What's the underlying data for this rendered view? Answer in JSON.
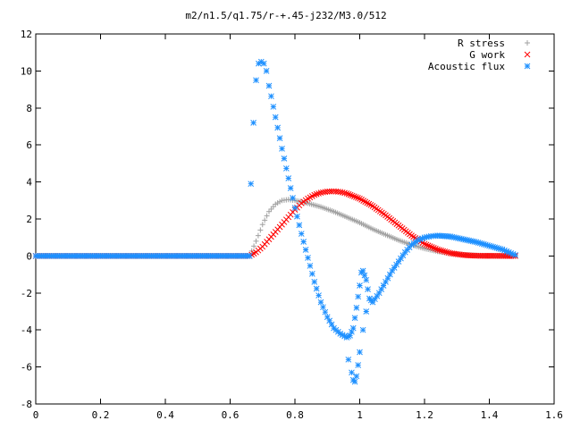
{
  "chart_data": {
    "type": "scatter",
    "title": "m2/n1.5/q1.75/r-+.45-j232/M3.0/512",
    "xlabel": "",
    "ylabel": "",
    "xlim": [
      0,
      1.6
    ],
    "ylim": [
      -8,
      12
    ],
    "x_ticks": [
      "0",
      "0.2",
      "0.4",
      "0.6",
      "0.8",
      "1",
      "1.2",
      "1.4",
      "1.6"
    ],
    "y_ticks": [
      "12",
      "10",
      "8",
      "6",
      "4",
      "2",
      "0",
      "-2",
      "-4",
      "-6",
      "-8"
    ],
    "grid": false,
    "legend_position": "top-right",
    "series": [
      {
        "name": "R stress",
        "color": "#a0a0a0",
        "marker": "plus",
        "points": [
          [
            0.0,
            0
          ],
          [
            0.66,
            0
          ],
          [
            0.68,
            0.8
          ],
          [
            0.7,
            1.7
          ],
          [
            0.72,
            2.4
          ],
          [
            0.74,
            2.8
          ],
          [
            0.76,
            3.0
          ],
          [
            0.78,
            3.05
          ],
          [
            0.8,
            3.0
          ],
          [
            0.84,
            2.85
          ],
          [
            0.88,
            2.65
          ],
          [
            0.92,
            2.4
          ],
          [
            0.96,
            2.1
          ],
          [
            1.0,
            1.8
          ],
          [
            1.04,
            1.45
          ],
          [
            1.08,
            1.15
          ],
          [
            1.12,
            0.85
          ],
          [
            1.16,
            0.6
          ],
          [
            1.2,
            0.4
          ],
          [
            1.24,
            0.25
          ],
          [
            1.28,
            0.14
          ],
          [
            1.32,
            0.07
          ],
          [
            1.36,
            0.03
          ],
          [
            1.4,
            0.01
          ],
          [
            1.48,
            0.0
          ]
        ]
      },
      {
        "name": "G work",
        "color": "#ff0000",
        "marker": "cross",
        "points": [
          [
            0.0,
            0
          ],
          [
            0.66,
            0
          ],
          [
            0.68,
            0.2
          ],
          [
            0.7,
            0.5
          ],
          [
            0.72,
            0.9
          ],
          [
            0.74,
            1.3
          ],
          [
            0.76,
            1.7
          ],
          [
            0.78,
            2.1
          ],
          [
            0.8,
            2.5
          ],
          [
            0.82,
            2.85
          ],
          [
            0.84,
            3.1
          ],
          [
            0.86,
            3.3
          ],
          [
            0.88,
            3.42
          ],
          [
            0.9,
            3.48
          ],
          [
            0.92,
            3.5
          ],
          [
            0.94,
            3.46
          ],
          [
            0.96,
            3.38
          ],
          [
            1.0,
            3.1
          ],
          [
            1.04,
            2.7
          ],
          [
            1.08,
            2.2
          ],
          [
            1.12,
            1.65
          ],
          [
            1.16,
            1.1
          ],
          [
            1.2,
            0.65
          ],
          [
            1.24,
            0.35
          ],
          [
            1.28,
            0.15
          ],
          [
            1.32,
            0.05
          ],
          [
            1.36,
            0.01
          ],
          [
            1.48,
            0.0
          ]
        ]
      },
      {
        "name": "Acoustic flux",
        "color": "#1e90ff",
        "marker": "star",
        "points": [
          [
            0.0,
            0
          ],
          [
            0.66,
            0
          ],
          [
            0.664,
            3.9
          ],
          [
            0.672,
            7.2
          ],
          [
            0.68,
            9.5
          ],
          [
            0.688,
            10.4
          ],
          [
            0.696,
            10.5
          ],
          [
            0.704,
            10.4
          ],
          [
            0.712,
            10.0
          ],
          [
            0.72,
            9.2
          ],
          [
            0.74,
            7.5
          ],
          [
            0.76,
            5.8
          ],
          [
            0.78,
            4.2
          ],
          [
            0.8,
            2.6
          ],
          [
            0.82,
            1.2
          ],
          [
            0.84,
            -0.1
          ],
          [
            0.86,
            -1.4
          ],
          [
            0.88,
            -2.5
          ],
          [
            0.9,
            -3.3
          ],
          [
            0.92,
            -3.9
          ],
          [
            0.94,
            -4.2
          ],
          [
            0.96,
            -4.4
          ],
          [
            0.97,
            -4.3
          ],
          [
            0.98,
            -3.9
          ],
          [
            0.99,
            -2.8
          ],
          [
            1.0,
            -1.6
          ],
          [
            1.005,
            -0.9
          ],
          [
            1.01,
            -0.8
          ],
          [
            1.02,
            -1.3
          ],
          [
            1.03,
            -2.3
          ],
          [
            1.04,
            -2.5
          ],
          [
            1.06,
            -2.0
          ],
          [
            1.08,
            -1.4
          ],
          [
            1.1,
            -0.8
          ],
          [
            1.12,
            -0.3
          ],
          [
            1.14,
            0.2
          ],
          [
            1.16,
            0.6
          ],
          [
            1.18,
            0.85
          ],
          [
            1.2,
            1.0
          ],
          [
            1.22,
            1.07
          ],
          [
            1.24,
            1.1
          ],
          [
            1.28,
            1.05
          ],
          [
            1.32,
            0.9
          ],
          [
            1.36,
            0.75
          ],
          [
            1.4,
            0.55
          ],
          [
            1.44,
            0.35
          ],
          [
            1.46,
            0.2
          ],
          [
            1.48,
            0.05
          ]
        ],
        "dip_points": [
          [
            0.965,
            -5.6
          ],
          [
            0.975,
            -6.3
          ],
          [
            0.98,
            -6.7
          ],
          [
            0.985,
            -6.8
          ],
          [
            0.99,
            -6.5
          ],
          [
            0.995,
            -5.9
          ],
          [
            1.0,
            -5.2
          ],
          [
            1.01,
            -4.0
          ],
          [
            1.02,
            -3.0
          ]
        ]
      }
    ]
  }
}
